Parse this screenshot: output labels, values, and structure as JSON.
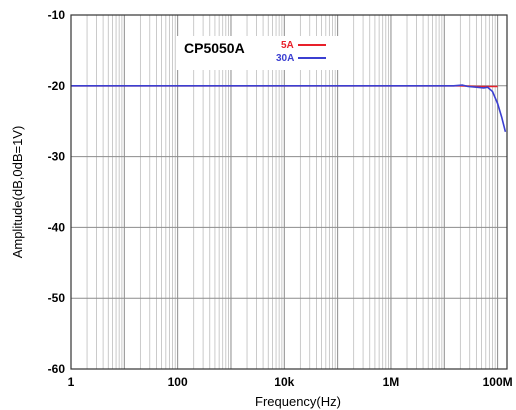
{
  "chart_data": {
    "type": "line",
    "title": "CP5050A",
    "xlabel": "Frequency(Hz)",
    "ylabel": "Amplitude(dB,0dB=1V)",
    "x_scale": "log",
    "xlim": [
      1,
      150000000
    ],
    "ylim": [
      -60,
      -10
    ],
    "x_ticks": [
      {
        "value": 1,
        "label": "1"
      },
      {
        "value": 100,
        "label": "100"
      },
      {
        "value": 10000,
        "label": "10k"
      },
      {
        "value": 1000000,
        "label": "1M"
      },
      {
        "value": 100000000,
        "label": "100M"
      }
    ],
    "y_ticks": [
      {
        "value": -10,
        "label": "-10"
      },
      {
        "value": -20,
        "label": "-20"
      },
      {
        "value": -30,
        "label": "-30"
      },
      {
        "value": -40,
        "label": "-40"
      },
      {
        "value": -50,
        "label": "-50"
      },
      {
        "value": -60,
        "label": "-60"
      }
    ],
    "grid": true,
    "legend_position": "top-center",
    "series": [
      {
        "name": "5A",
        "color": "#e8202a",
        "points": [
          [
            1,
            -20.0
          ],
          [
            10000000,
            -20.0
          ],
          [
            20000000,
            -20.0
          ],
          [
            40000000,
            -20.1
          ],
          [
            70000000,
            -20.1
          ],
          [
            100000000,
            -20.1
          ]
        ]
      },
      {
        "name": "30A",
        "color": "#3b3fd1",
        "points": [
          [
            1,
            -20.0
          ],
          [
            10000000,
            -20.0
          ],
          [
            15000000,
            -20.0
          ],
          [
            22000000,
            -19.9
          ],
          [
            28000000,
            -20.1
          ],
          [
            40000000,
            -20.2
          ],
          [
            55000000,
            -20.3
          ],
          [
            65000000,
            -20.2
          ],
          [
            80000000,
            -20.8
          ],
          [
            100000000,
            -22.5
          ],
          [
            120000000,
            -24.5
          ],
          [
            140000000,
            -26.5
          ]
        ]
      }
    ]
  }
}
